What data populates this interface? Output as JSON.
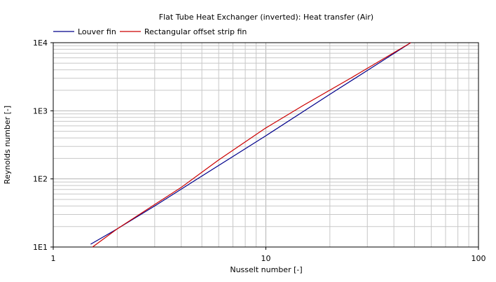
{
  "chart_data": {
    "type": "line",
    "title": "Flat Tube Heat Exchanger (inverted): Heat transfer (Air)",
    "xlabel": "Nusselt number [-]",
    "ylabel": "Reynolds number [-]",
    "xscale": "log",
    "yscale": "log",
    "xlim": [
      1,
      100
    ],
    "ylim": [
      10,
      10000
    ],
    "grid": true,
    "legend_position": "top-left",
    "x_ticks": [
      {
        "value": 1,
        "label": "1"
      },
      {
        "value": 10,
        "label": "10"
      },
      {
        "value": 100,
        "label": "100"
      }
    ],
    "y_ticks": [
      {
        "value": 10,
        "label": "1E1"
      },
      {
        "value": 100,
        "label": "1E2"
      },
      {
        "value": 1000,
        "label": "1E3"
      },
      {
        "value": 10000,
        "label": "1E4"
      }
    ],
    "series": [
      {
        "name": "Louver fin",
        "color": "#00008b",
        "x": [
          1.5,
          2.0,
          3.0,
          5.0,
          10.0,
          20.0,
          30.0,
          48.0
        ],
        "y": [
          11,
          18.5,
          40,
          110,
          430,
          1750,
          3900,
          10000
        ]
      },
      {
        "name": "Rectangular offset strip fin",
        "color": "#cc0000",
        "x": [
          1.53,
          2.0,
          3.0,
          4.0,
          6.0,
          10.0,
          15.0,
          25.0,
          48.0
        ],
        "y": [
          10,
          18.5,
          42,
          75,
          190,
          560,
          1200,
          3000,
          10000
        ]
      }
    ]
  }
}
